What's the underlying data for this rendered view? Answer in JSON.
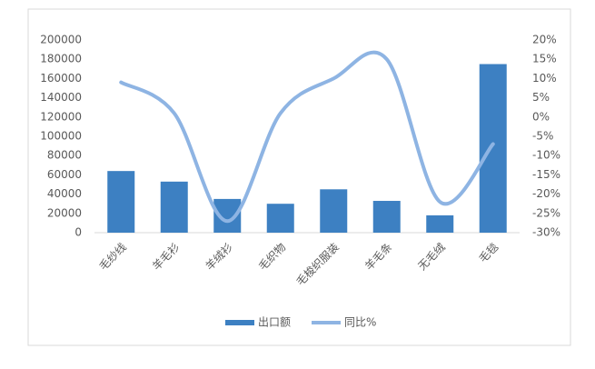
{
  "chart_data": {
    "type": "bar-line",
    "categories": [
      "毛纱线",
      "羊毛衫",
      "羊绒衫",
      "毛织物",
      "毛梭织服装",
      "羊毛条",
      "无毛绒",
      "毛毯"
    ],
    "series": [
      {
        "name": "出口额",
        "type": "bar",
        "color": "#3d80c2",
        "values": [
          64000,
          53000,
          35000,
          30000,
          45000,
          33000,
          18000,
          175000
        ]
      },
      {
        "name": "同比%",
        "type": "line",
        "axis": "y2",
        "color": "#8eb4e3",
        "values": [
          9,
          1,
          -27,
          1,
          10,
          15,
          -22,
          -7
        ]
      }
    ],
    "ylim": [
      0,
      200000
    ],
    "yticks": [
      0,
      20000,
      40000,
      60000,
      80000,
      100000,
      120000,
      140000,
      160000,
      180000,
      200000
    ],
    "y2lim": [
      -30,
      20
    ],
    "y2ticks": [
      {
        "value": -30,
        "label": "-30%"
      },
      {
        "value": -25,
        "label": "-25%"
      },
      {
        "value": -20,
        "label": "-20%"
      },
      {
        "value": -15,
        "label": "-15%"
      },
      {
        "value": -10,
        "label": "-10%"
      },
      {
        "value": -5,
        "label": "-5%"
      },
      {
        "value": 0,
        "label": "0%"
      },
      {
        "value": 5,
        "label": "5%"
      },
      {
        "value": 10,
        "label": "10%"
      },
      {
        "value": 15,
        "label": "15%"
      },
      {
        "value": 20,
        "label": "20%"
      }
    ],
    "legend": "bottom"
  }
}
